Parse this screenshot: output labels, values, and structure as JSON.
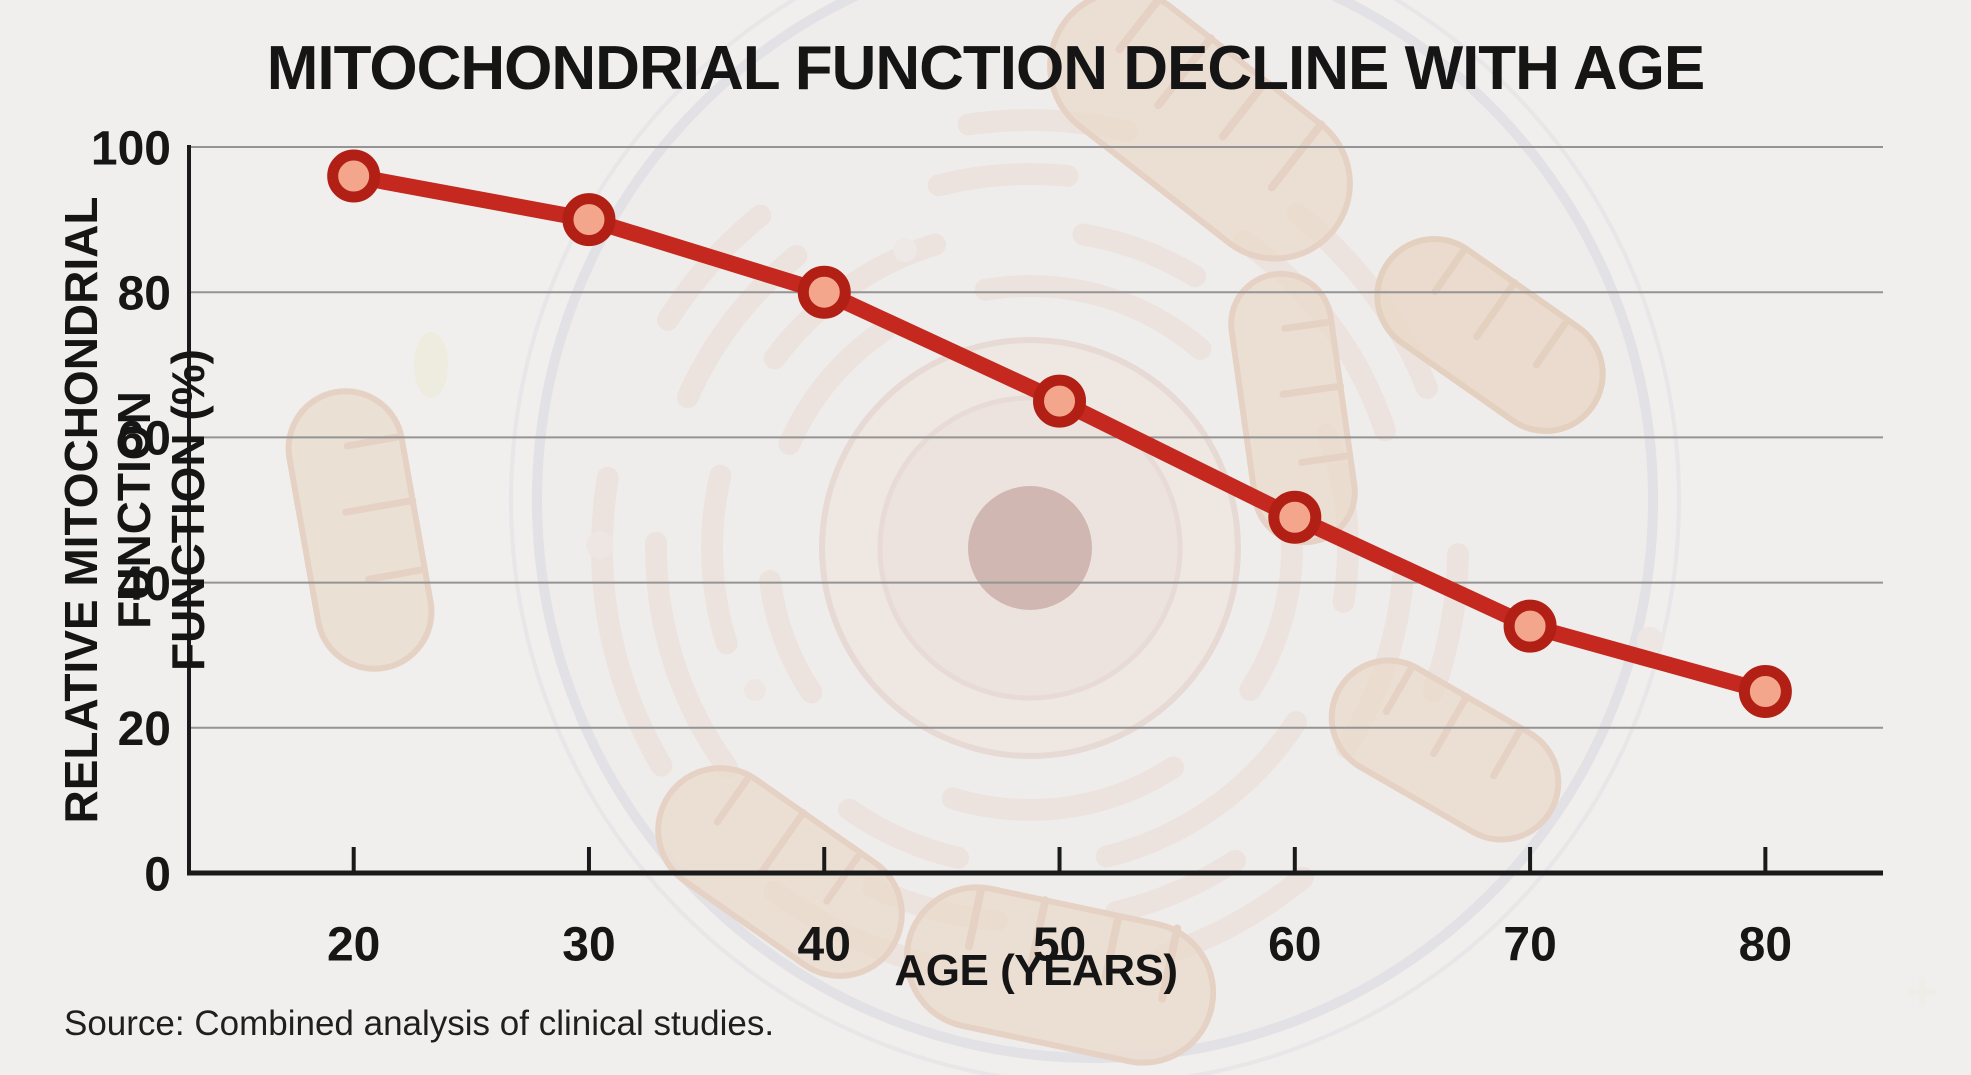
{
  "title": "MITOCHONDRIAL FUNCTION DECLINE WITH AGE",
  "source_note": "Source: Combined analysis of clinical studies.",
  "y_axis": {
    "label_line1": "RELATIVE MITOCHONDRIAL FUNCTION",
    "label_line2": "FUNCTION (%)"
  },
  "x_axis": {
    "label": "AGE (YEARS)"
  },
  "chart_data": {
    "type": "line",
    "title": "MITOCHONDRIAL FUNCTION DECLINE WITH AGE",
    "x": [
      20,
      30,
      40,
      50,
      60,
      70,
      80
    ],
    "series": [
      {
        "name": "Relative mitochondrial function (%)",
        "values": [
          96,
          90,
          80,
          65,
          49,
          34,
          25
        ]
      }
    ],
    "xlabel": "AGE (YEARS)",
    "ylabel": "RELATIVE MITOCHONDRIAL FUNCTION FUNCTION (%)",
    "xlim": [
      13,
      85
    ],
    "ylim": [
      0,
      100
    ],
    "xtick_values": [
      20,
      30,
      40,
      50,
      60,
      70,
      80
    ],
    "xticks": [
      "20",
      "30",
      "40",
      "50",
      "60",
      "70",
      "80"
    ],
    "ytick_values": [
      0,
      20,
      40,
      60,
      80,
      100
    ],
    "yticks": [
      "0",
      "20",
      "40",
      "60",
      "80",
      "100"
    ],
    "grid": "horizontal-only",
    "legend_position": "none",
    "annotations": [],
    "colors": {
      "line": "#c4281e",
      "marker_ring": "#b22015",
      "marker_fill": "#f4a68d",
      "grid": "#949494",
      "axis": "#1a1a1a",
      "background": "#f0efed"
    }
  }
}
